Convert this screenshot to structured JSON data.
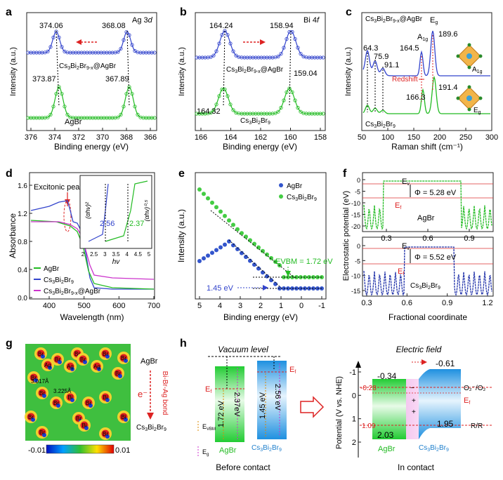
{
  "colors": {
    "blue": "#3344cc",
    "green": "#22bb22",
    "magenta": "#cc33cc",
    "red": "#dd2222",
    "orange": "#dd8800",
    "sky": "#29a3e6"
  },
  "panels": {
    "a": {
      "label": "a",
      "element": "Ag 3",
      "element_sub": "d",
      "xlabel": "Binding energy (eV)",
      "ylabel": "Intensity (a.u.)",
      "xticks": [
        "376",
        "374",
        "372",
        "370",
        "368",
        "366"
      ],
      "top_series": "Cs3Bi2Br9-x@AgBr",
      "bottom_series": "AgBr",
      "peaks_top": [
        "374.06",
        "368.08"
      ],
      "peaks_bottom": [
        "373.87",
        "367.89"
      ]
    },
    "b": {
      "label": "b",
      "element": "Bi 4",
      "element_sub": "f",
      "xlabel": "Binding energy (eV)",
      "ylabel": "Intensity (a.u.)",
      "xticks": [
        "166",
        "164",
        "162",
        "160",
        "158"
      ],
      "top_series": "Cs3Bi2Br9-x@AgBr",
      "bottom_series": "Cs3Bi2Br9",
      "peaks_top": [
        "164.24",
        "158.94"
      ],
      "peaks_bottom": [
        "164.32",
        "159.04"
      ]
    },
    "c": {
      "label": "c",
      "title": "Cs3Bi2Br9-x@AgBr",
      "xlabel": "Raman shift (cm⁻¹)",
      "ylabel": "Intensity (a.u.)",
      "xticks": [
        "50",
        "100",
        "150",
        "200",
        "250",
        "300"
      ],
      "bottom_series": "Cs3Bi2Br9",
      "peaks_top": [
        "64.3",
        "75.9",
        "91.1",
        "164.5",
        "189.6"
      ],
      "peaks_bottom": [
        "166.3",
        "191.4"
      ],
      "mode_a": "A1g",
      "mode_e": "Eg",
      "redshift": "Redshift"
    },
    "d": {
      "label": "d",
      "annotation": "Excitonic peak",
      "xlabel": "Wavelength (nm)",
      "ylabel": "Absorbance",
      "xticks": [
        "400",
        "500",
        "600",
        "700"
      ],
      "yticks": [
        "0.0",
        "0.4",
        "0.8",
        "1.2",
        "1.6"
      ],
      "legend": [
        "AgBr",
        "Cs3Bi2Br9",
        "Cs3Bi2Br9-x@AgBr"
      ],
      "inset_xlabel": "hv",
      "inset_ylabel_left": "(αhv)²",
      "inset_ylabel_right": "(αhv)⁰·⁵",
      "inset_xticks": [
        "2",
        "2.5",
        "3",
        "3.5",
        "4",
        "4.5",
        "5"
      ],
      "inset_val_blue": "2.56",
      "inset_val_green": "2.37"
    },
    "e": {
      "label": "e",
      "xlabel": "Binding energy (eV)",
      "ylabel": "Intensity (a.u.)",
      "xticks": [
        "5",
        "4",
        "3",
        "2",
        "1",
        "0",
        "-1"
      ],
      "legend": [
        "AgBr",
        "Cs3Bi2Br9"
      ],
      "evbm_green": "EVBM = 1.72 eV",
      "evbm_blue": "1.45 eV"
    },
    "f": {
      "label": "f",
      "ylabel": "Electrostatic potential (eV)",
      "xlabel": "Fractional coordinate",
      "top_xticks": [
        "0.3",
        "0.6",
        "0.9"
      ],
      "top_yticks": [
        "0",
        "-5",
        "-10",
        "-15",
        "-20"
      ],
      "bottom_xticks": [
        "0.3",
        "0.6",
        "0.9",
        "1.2"
      ],
      "bottom_yticks": [
        "0",
        "-5",
        "-10",
        "-15"
      ],
      "phi_top": "Φ = 5.28 eV",
      "phi_bottom": "Φ = 5.52 eV",
      "top_series": "AgBr",
      "bottom_series": "Cs3Bi2Br9"
    },
    "g": {
      "label": "g",
      "atoms": [
        "Br",
        "Br",
        "Br",
        "Br",
        "Ag",
        "Ag",
        "Ag",
        "Br",
        "Br",
        "Br",
        "Br",
        "Br",
        "Bi",
        "Bi",
        "Br",
        "Br",
        "Br",
        "Br",
        "Bi",
        "Bi",
        "Br",
        "Br"
      ],
      "dist1": "3.017Å",
      "dist2": "3.225Å",
      "colorbar_min": "-0.01",
      "colorbar_max": "0.01",
      "top_label": "AgBr",
      "electron": "e⁻",
      "bond_label": "Bi-Br-Ag bond",
      "bottom_label": "Cs3Bi2Br9"
    },
    "h": {
      "label": "h",
      "vacuum": "Vacuum level",
      "before": "Before contact",
      "in_contact": "In contact",
      "field": "Electric field",
      "ylabel": "Potential (V vs. NHE)",
      "yticks": [
        "-1",
        "0",
        "1",
        "2"
      ],
      "agbr": "AgBr",
      "cs": "Cs3Bi2Br9",
      "ef": "Ef",
      "evbm": "EVBM",
      "eg": "Eg",
      "gap_agbr": "2.37eV",
      "gap_cs": "2.56 eV",
      "vbm_agbr": "1.72 eV",
      "vbm_cs": "1.45 eV",
      "cb_agbr": "-0.34",
      "cb_cs": "-0.61",
      "vb_agbr": "2.03",
      "vb_cs": "1.95",
      "o2": "-0.28",
      "o2_label": "O₂⁻/O₂",
      "rr": "1.09",
      "rr_label": "R/R"
    }
  }
}
